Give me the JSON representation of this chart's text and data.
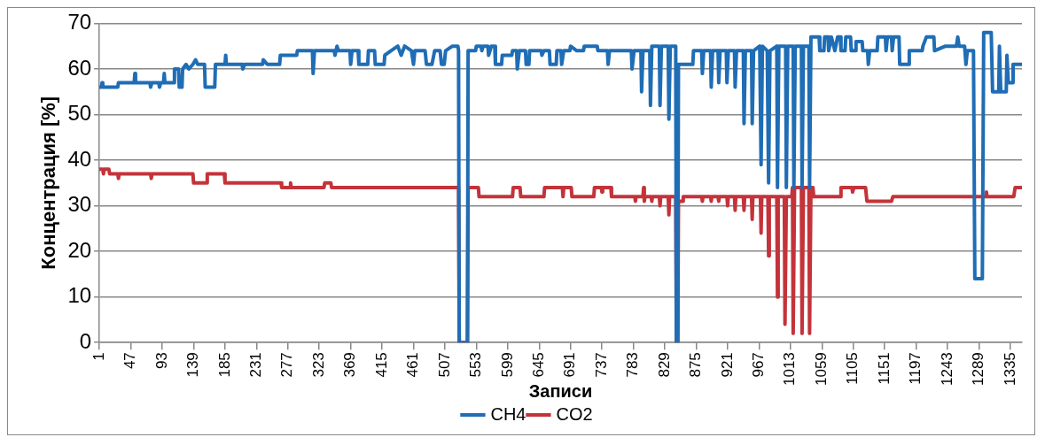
{
  "chart_data": {
    "type": "line",
    "xlabel": "Записи",
    "ylabel": "Концентрация [%]",
    "xlim": [
      1,
      1352
    ],
    "xticks": [
      1,
      47,
      93,
      139,
      185,
      231,
      277,
      323,
      369,
      415,
      461,
      507,
      553,
      599,
      645,
      691,
      737,
      783,
      829,
      875,
      921,
      967,
      1013,
      1059,
      1105,
      1151,
      1197,
      1243,
      1289,
      1335
    ],
    "ylim": [
      0,
      70
    ],
    "yticks": [
      0,
      10,
      20,
      30,
      40,
      50,
      60,
      70
    ],
    "grid": "y",
    "legend": "bottom",
    "marker": "none",
    "line_style": "solid",
    "series": [
      {
        "name": "CH4",
        "color": "#1f6db5",
        "x": [
          1,
          4,
          5,
          6,
          28,
          29,
          52,
          53,
          54,
          75,
          76,
          78,
          88,
          89,
          91,
          95,
          96,
          97,
          110,
          111,
          117,
          118,
          122,
          123,
          128,
          132,
          138,
          142,
          145,
          155,
          156,
          170,
          171,
          185,
          186,
          187,
          210,
          211,
          214,
          240,
          241,
          247,
          265,
          266,
          290,
          291,
          313,
          314,
          316,
          345,
          346,
          349,
          351,
          368,
          369,
          371,
          380,
          381,
          394,
          395,
          404,
          405,
          418,
          419,
          428,
          438,
          443,
          448,
          458,
          461,
          463,
          478,
          480,
          488,
          492,
          500,
          502,
          506,
          508,
          518,
          526,
          527,
          528,
          540,
          541,
          552,
          553,
          560,
          561,
          563,
          570,
          571,
          575,
          580,
          581,
          590,
          591,
          605,
          606,
          612,
          613,
          616,
          625,
          626,
          630,
          631,
          648,
          649,
          652,
          660,
          661,
          670,
          671,
          677,
          678,
          681,
          690,
          691,
          700,
          710,
          711,
          730,
          731,
          745,
          746,
          748,
          780,
          781,
          784,
          794,
          795,
          797,
          807,
          808,
          810,
          821,
          822,
          824,
          834,
          835,
          837,
          845,
          846,
          848,
          849,
          870,
          871,
          883,
          884,
          886,
          896,
          897,
          899,
          907,
          908,
          910,
          919,
          920,
          922,
          931,
          932,
          934,
          944,
          945,
          947,
          956,
          957,
          959,
          968,
          970,
          972,
          979,
          981,
          983,
          993,
          994,
          996,
          1006,
          1007,
          1009,
          1017,
          1018,
          1020,
          1029,
          1030,
          1032,
          1040,
          1041,
          1043,
          1055,
          1056,
          1062,
          1063,
          1068,
          1069,
          1073,
          1078,
          1082,
          1086,
          1087,
          1093,
          1094,
          1101,
          1102,
          1108,
          1109,
          1118,
          1119,
          1126,
          1127,
          1129,
          1140,
          1141,
          1152,
          1153,
          1155,
          1161,
          1162,
          1164,
          1172,
          1173,
          1186,
          1187,
          1206,
          1207,
          1212,
          1223,
          1224,
          1240,
          1256,
          1258,
          1260,
          1268,
          1270,
          1272,
          1281,
          1283,
          1294,
          1296,
          1307,
          1309,
          1318,
          1319,
          1321,
          1329,
          1330,
          1332,
          1338,
          1339,
          1352
        ],
        "values": [
          56,
          56,
          57,
          56,
          56,
          57,
          57,
          59,
          57,
          57,
          56,
          57,
          57,
          56,
          57,
          57,
          59,
          57,
          57,
          60,
          60,
          56,
          56,
          60,
          61,
          60,
          61,
          62,
          61,
          61,
          56,
          56,
          61,
          61,
          63,
          61,
          61,
          60,
          61,
          61,
          62,
          61,
          61,
          63,
          63,
          64,
          64,
          59,
          64,
          64,
          63,
          65,
          64,
          64,
          61,
          64,
          64,
          61,
          61,
          64,
          64,
          61,
          61,
          63,
          64,
          65,
          63,
          65,
          64,
          61,
          64,
          64,
          61,
          61,
          64,
          64,
          61,
          61,
          64,
          65,
          65,
          64,
          0,
          0,
          64,
          64,
          65,
          65,
          64,
          65,
          65,
          63,
          65,
          65,
          61,
          61,
          63,
          63,
          64,
          64,
          60,
          64,
          64,
          61,
          61,
          64,
          64,
          63,
          64,
          64,
          61,
          61,
          64,
          64,
          61,
          64,
          64,
          65,
          64,
          64,
          65,
          65,
          64,
          64,
          61,
          64,
          64,
          60,
          64,
          64,
          55,
          64,
          64,
          52,
          65,
          65,
          52,
          65,
          65,
          49,
          65,
          65,
          0,
          0,
          61,
          61,
          64,
          64,
          59,
          64,
          64,
          56,
          64,
          64,
          57,
          64,
          64,
          57,
          64,
          64,
          56,
          64,
          64,
          48,
          64,
          64,
          48,
          64,
          65,
          39,
          65,
          64,
          35,
          64,
          65,
          34,
          65,
          65,
          34,
          65,
          65,
          34,
          65,
          65,
          34,
          65,
          65,
          34,
          67,
          67,
          64,
          64,
          67,
          67,
          64,
          67,
          64,
          67,
          67,
          64,
          64,
          67,
          67,
          64,
          64,
          66,
          66,
          64,
          64,
          61,
          64,
          64,
          67,
          67,
          64,
          67,
          67,
          64,
          67,
          67,
          61,
          61,
          64,
          64,
          65,
          67,
          67,
          64,
          65,
          65,
          67,
          65,
          65,
          61,
          64,
          64,
          14,
          14,
          68,
          68,
          55,
          55,
          65,
          55,
          55,
          63,
          57,
          57,
          61,
          61
        ]
      },
      {
        "name": "CO2",
        "color": "#c4333a",
        "x": [
          1,
          6,
          7,
          8,
          15,
          16,
          28,
          29,
          30,
          76,
          77,
          78,
          138,
          139,
          158,
          159,
          184,
          185,
          267,
          268,
          280,
          281,
          282,
          330,
          331,
          340,
          341,
          527,
          528,
          540,
          541,
          556,
          557,
          606,
          607,
          617,
          618,
          652,
          653,
          679,
          680,
          681,
          692,
          693,
          725,
          726,
          736,
          737,
          738,
          750,
          751,
          785,
          786,
          787,
          797,
          798,
          799,
          800,
          809,
          810,
          811,
          821,
          822,
          823,
          834,
          835,
          836,
          845,
          846,
          848,
          849,
          855,
          856,
          883,
          884,
          885,
          896,
          897,
          898,
          907,
          908,
          909,
          920,
          921,
          922,
          931,
          932,
          933,
          944,
          945,
          946,
          956,
          957,
          958,
          969,
          970,
          971,
          980,
          981,
          982,
          993,
          994,
          995,
          1004,
          1005,
          1007,
          1015,
          1016,
          1017,
          1019,
          1029,
          1030,
          1032,
          1040,
          1041,
          1043,
          1046,
          1047,
          1086,
          1087,
          1103,
          1104,
          1106,
          1123,
          1125,
          1161,
          1163,
          1299,
          1300,
          1301,
          1340,
          1342,
          1352
        ],
        "values": [
          38,
          38,
          37,
          38,
          38,
          37,
          37,
          36,
          37,
          37,
          36,
          37,
          37,
          35,
          35,
          37,
          37,
          35,
          35,
          34,
          34,
          35,
          34,
          34,
          35,
          35,
          34,
          34,
          0,
          0,
          34,
          34,
          32,
          32,
          34,
          34,
          32,
          32,
          34,
          34,
          32,
          34,
          34,
          32,
          32,
          34,
          34,
          33,
          34,
          34,
          32,
          32,
          31,
          32,
          32,
          34,
          31,
          32,
          32,
          31,
          32,
          32,
          30,
          32,
          32,
          28,
          32,
          32,
          0,
          0,
          31,
          31,
          32,
          32,
          31,
          32,
          32,
          31,
          32,
          32,
          31,
          32,
          32,
          30,
          32,
          32,
          29,
          32,
          32,
          29,
          32,
          32,
          27,
          32,
          32,
          24,
          32,
          32,
          19,
          32,
          32,
          10,
          32,
          32,
          4,
          32,
          32,
          34,
          2,
          34,
          34,
          2,
          34,
          34,
          2,
          34,
          34,
          32,
          32,
          34,
          34,
          33,
          34,
          34,
          31,
          31,
          32,
          32,
          33,
          32,
          32,
          34,
          34
        ]
      }
    ]
  }
}
